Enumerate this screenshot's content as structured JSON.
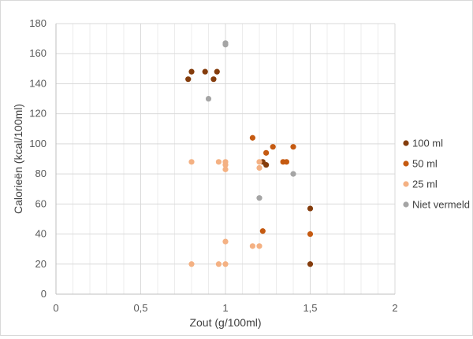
{
  "chart_data": {
    "type": "scatter",
    "xlabel": "Zout (g/100ml)",
    "ylabel": "Calorieën (kcal/100ml)",
    "xlim": [
      0,
      2
    ],
    "ylim": [
      0,
      180
    ],
    "x_ticks": [
      "0",
      "0,5",
      "1",
      "1,5",
      "2"
    ],
    "y_ticks": [
      "0",
      "20",
      "40",
      "60",
      "80",
      "100",
      "120",
      "140",
      "160",
      "180"
    ],
    "grid": true,
    "legend_position": "right",
    "series": [
      {
        "name": "100 ml",
        "color": "#843c0c",
        "points": [
          [
            0.78,
            143
          ],
          [
            0.8,
            148
          ],
          [
            0.88,
            148
          ],
          [
            0.93,
            143
          ],
          [
            0.95,
            148
          ],
          [
            1.22,
            88
          ],
          [
            1.24,
            86
          ],
          [
            1.5,
            57
          ],
          [
            1.5,
            20
          ]
        ]
      },
      {
        "name": "50 ml",
        "color": "#c55a11",
        "points": [
          [
            1.16,
            104
          ],
          [
            1.24,
            94
          ],
          [
            1.28,
            98
          ],
          [
            1.34,
            88
          ],
          [
            1.36,
            88
          ],
          [
            1.4,
            98
          ],
          [
            1.22,
            42
          ],
          [
            1.5,
            40
          ]
        ]
      },
      {
        "name": "25 ml",
        "color": "#f4b183",
        "points": [
          [
            0.8,
            88
          ],
          [
            0.96,
            88
          ],
          [
            1.0,
            88
          ],
          [
            1.0,
            86
          ],
          [
            1.0,
            83
          ],
          [
            1.2,
            88
          ],
          [
            1.2,
            84
          ],
          [
            1.0,
            35
          ],
          [
            1.16,
            32
          ],
          [
            1.2,
            32
          ],
          [
            0.8,
            20
          ],
          [
            0.96,
            20
          ],
          [
            1.0,
            20
          ]
        ]
      },
      {
        "name": "Niet vermeld",
        "color": "#a5a5a5",
        "points": [
          [
            1.0,
            167
          ],
          [
            1.0,
            166
          ],
          [
            0.9,
            130
          ],
          [
            1.4,
            80
          ],
          [
            1.2,
            64
          ]
        ]
      }
    ]
  }
}
